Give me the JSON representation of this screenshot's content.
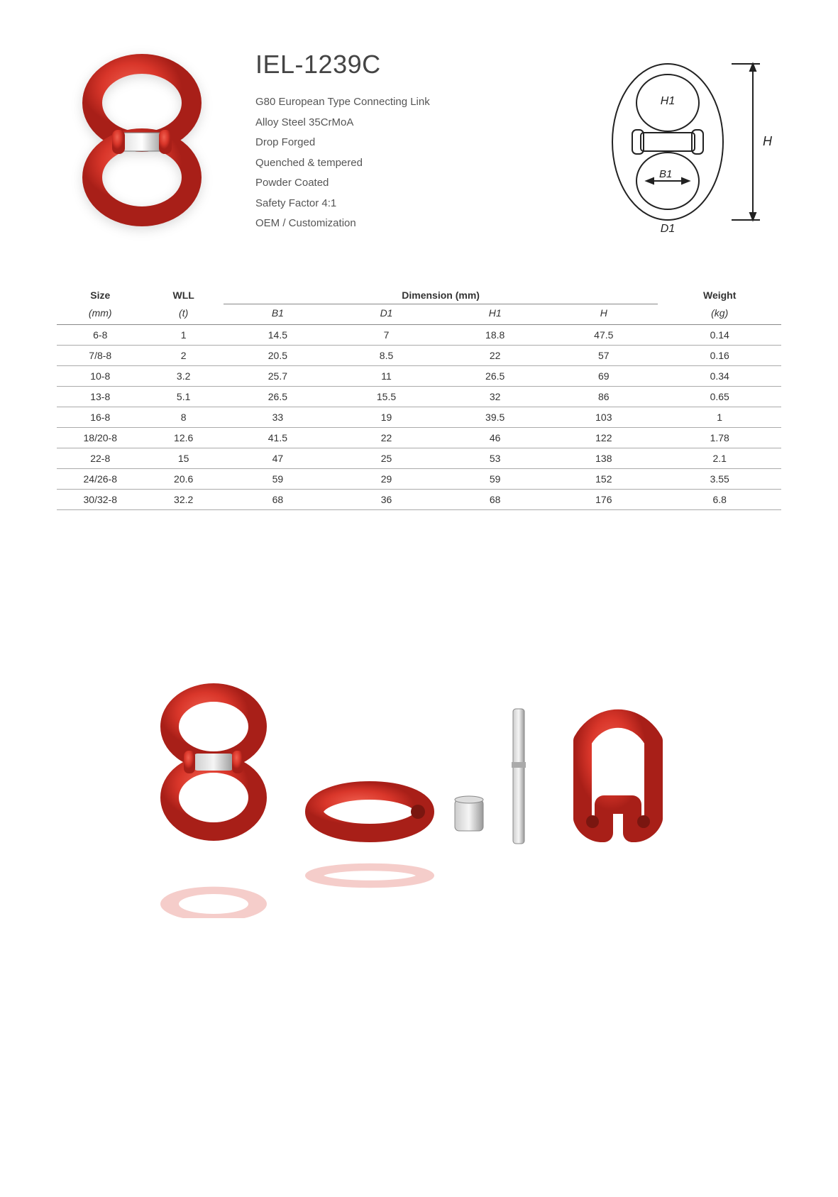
{
  "product": {
    "title": "IEL-1239C",
    "specs": [
      "G80 European Type Connecting Link",
      "Alloy Steel 35CrMoA",
      "Drop Forged",
      "Quenched & tempered",
      "Powder Coated",
      "Safety Factor 4:1",
      "OEM / Customization"
    ]
  },
  "colors": {
    "product_red": "#d9362a",
    "product_red_dark": "#a81f18",
    "steel": "#b8b8b8",
    "steel_dark": "#888888",
    "diagram_stroke": "#222222",
    "text": "#333333",
    "border": "#888888"
  },
  "diagram_labels": {
    "H1": "H1",
    "H": "H",
    "B1": "B1",
    "D1": "D1"
  },
  "table": {
    "headers_top": {
      "size": "Size",
      "wll": "WLL",
      "dimension": "Dimension (mm)",
      "weight": "Weight"
    },
    "headers_sub": {
      "size_unit": "(mm)",
      "wll_unit": "(t)",
      "B1": "B1",
      "D1": "D1",
      "H1": "H1",
      "H": "H",
      "weight_unit": "(kg)"
    },
    "col_widths": [
      "12%",
      "11%",
      "15%",
      "15%",
      "15%",
      "15%",
      "17%"
    ],
    "rows": [
      {
        "size": "6-8",
        "wll": "1",
        "B1": "14.5",
        "D1": "7",
        "H1": "18.8",
        "H": "47.5",
        "weight": "0.14"
      },
      {
        "size": "7/8-8",
        "wll": "2",
        "B1": "20.5",
        "D1": "8.5",
        "H1": "22",
        "H": "57",
        "weight": "0.16"
      },
      {
        "size": "10-8",
        "wll": "3.2",
        "B1": "25.7",
        "D1": "11",
        "H1": "26.5",
        "H": "69",
        "weight": "0.34"
      },
      {
        "size": "13-8",
        "wll": "5.1",
        "B1": "26.5",
        "D1": "15.5",
        "H1": "32",
        "H": "86",
        "weight": "0.65"
      },
      {
        "size": "16-8",
        "wll": "8",
        "B1": "33",
        "D1": "19",
        "H1": "39.5",
        "H": "103",
        "weight": "1"
      },
      {
        "size": "18/20-8",
        "wll": "12.6",
        "B1": "41.5",
        "D1": "22",
        "H1": "46",
        "H": "122",
        "weight": "1.78"
      },
      {
        "size": "22-8",
        "wll": "15",
        "B1": "47",
        "D1": "25",
        "H1": "53",
        "H": "138",
        "weight": "2.1"
      },
      {
        "size": "24/26-8",
        "wll": "20.6",
        "B1": "59",
        "D1": "29",
        "H1": "59",
        "H": "152",
        "weight": "3.55"
      },
      {
        "size": "30/32-8",
        "wll": "32.2",
        "B1": "68",
        "D1": "36",
        "H1": "68",
        "H": "176",
        "weight": "6.8"
      }
    ]
  }
}
